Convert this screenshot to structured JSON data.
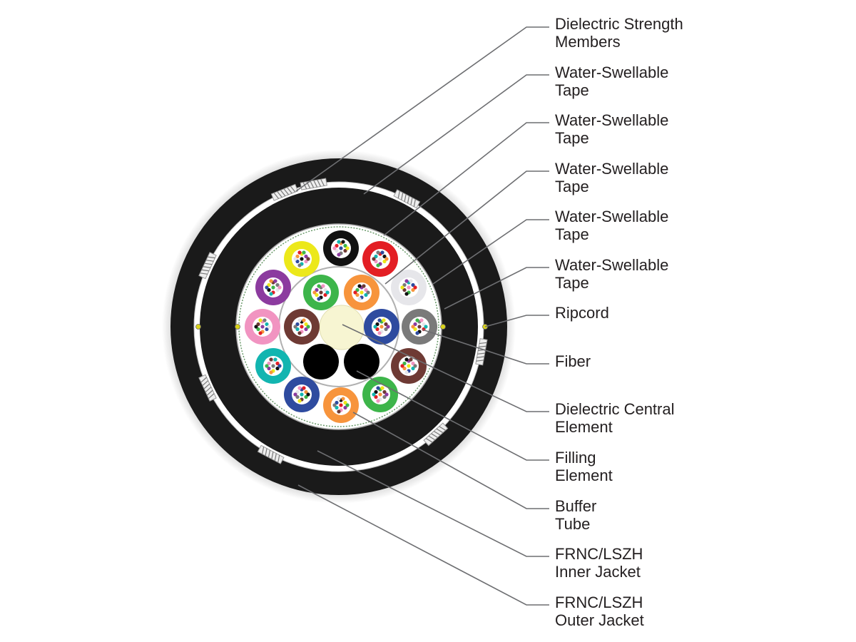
{
  "labels": [
    {
      "line1": "Dielectric Strength",
      "line2": "Members"
    },
    {
      "line1": "Water-Swellable",
      "line2": "Tape"
    },
    {
      "line1": "Water-Swellable",
      "line2": "Tape"
    },
    {
      "line1": "Water-Swellable",
      "line2": "Tape"
    },
    {
      "line1": "Water-Swellable",
      "line2": "Tape"
    },
    {
      "line1": "Water-Swellable",
      "line2": "Tape"
    },
    {
      "line1": "Ripcord",
      "line2": ""
    },
    {
      "line1": "Fiber",
      "line2": ""
    },
    {
      "line1": "Dielectric Central",
      "line2": "Element"
    },
    {
      "line1": "Filling",
      "line2": "Element"
    },
    {
      "line1": "Buffer",
      "line2": "Tube"
    },
    {
      "line1": "FRNC/LSZH",
      "line2": "Inner Jacket"
    },
    {
      "line1": "FRNC/LSZH",
      "line2": "Outer Jacket"
    }
  ],
  "colors": {
    "jacket": "#1a1a1a",
    "central_element": "#f7f5d2",
    "leader": "#6d6e71",
    "tube_outer_ring": [
      "#111111",
      "#e31e24",
      "#e6e6ea",
      "#7a7a7a",
      "#6e3a34",
      "#3db54a",
      "#f7943c",
      "#2e4b9f",
      "#12b5b0",
      "#f194c1",
      "#8c3b9f",
      "#ece81a"
    ],
    "tube_inner_ring": [
      "#3db54a",
      "#f7943c",
      "#2e4b9f",
      "#6e3a34"
    ],
    "fibers": [
      "#2e4b9f",
      "#f7943c",
      "#3db54a",
      "#6e3a34",
      "#7a7a7a",
      "#e6e6ea",
      "#e31e24",
      "#111111",
      "#ece81a",
      "#8c3b9f",
      "#f194c1",
      "#12b5b0"
    ]
  }
}
